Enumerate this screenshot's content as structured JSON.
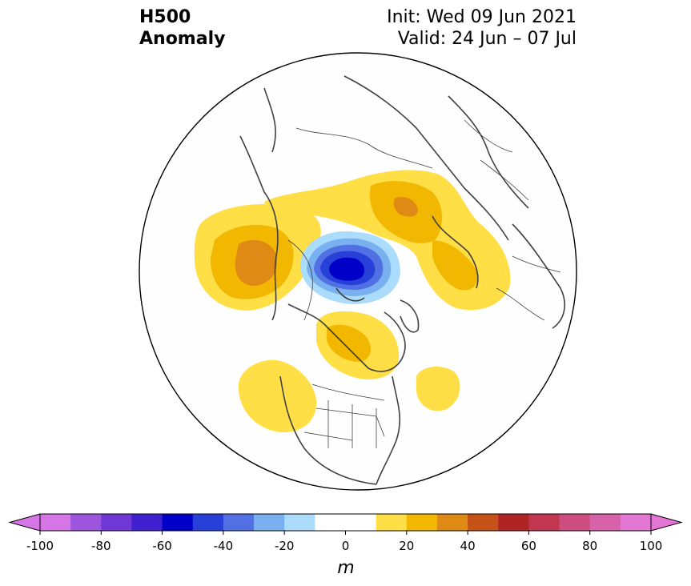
{
  "title": {
    "left_line1": "H500",
    "left_line2": "Anomaly",
    "right_line1": "Init: Wed 09 Jun 2021",
    "right_line2": "Valid: 24 Jun – 07 Jul"
  },
  "colorbar": {
    "units": "m",
    "ticks": [
      "-100",
      "-80",
      "-60",
      "-40",
      "-20",
      "0",
      "20",
      "40",
      "60",
      "80",
      "100"
    ],
    "colors": [
      "#d676e6",
      "#9e55de",
      "#6f38d6",
      "#3e20cf",
      "#0000c8",
      "#2640d8",
      "#5070e4",
      "#78b0f0",
      "#acdcfb",
      "#ffffff",
      "#ffffff",
      "#ffde46",
      "#f2b700",
      "#de8a14",
      "#c65218",
      "#b02424",
      "#c23650",
      "#cc4d7e",
      "#d862aa",
      "#e476d4"
    ],
    "extend_left": "#d676e6",
    "extend_right": "#e476d4"
  },
  "map": {
    "projection": "north polar stereographic",
    "anomaly_colors": {
      "pos10": "#ffde46",
      "pos20": "#f2b700",
      "pos30": "#de8a14",
      "neg10": "#acdcfb",
      "neg20": "#78b0f0",
      "neg30": "#5070e4",
      "neg40": "#2640d8",
      "neg50": "#0000c8"
    },
    "coast_color": "#404040",
    "border_color": "#000000"
  }
}
